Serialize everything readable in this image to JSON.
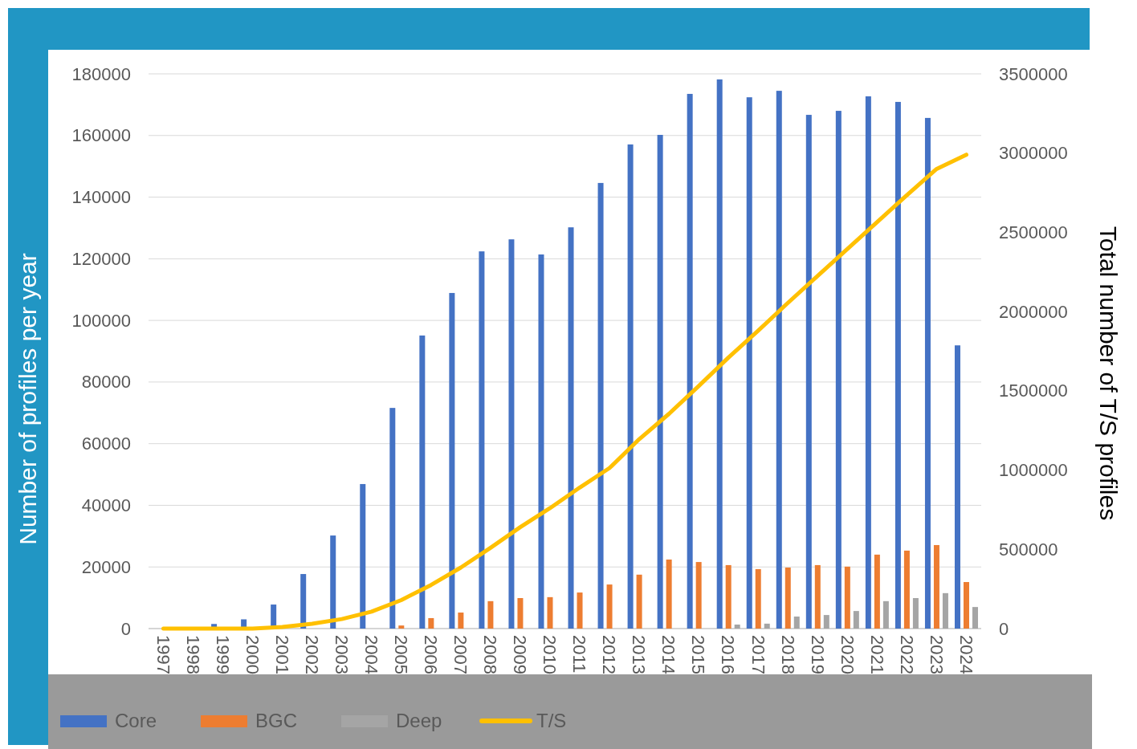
{
  "chart_data": {
    "type": "bar",
    "ylabel": "Number of profiles per year",
    "y2label": "Total number of T/S profiles",
    "categories": [
      "1997",
      "1998",
      "1999",
      "2000",
      "2001",
      "2002",
      "2003",
      "2004",
      "2005",
      "2006",
      "2007",
      "2008",
      "2009",
      "2010",
      "2011",
      "2012",
      "2013",
      "2014",
      "2015",
      "2016",
      "2017",
      "2018",
      "2019",
      "2020",
      "2021",
      "2022",
      "2023",
      "2024"
    ],
    "series": [
      {
        "name": "Core",
        "color": "#4472c4",
        "values": [
          0,
          0,
          1500,
          3000,
          7800,
          17700,
          30200,
          46900,
          71600,
          95100,
          108900,
          122400,
          126300,
          121400,
          130200,
          144600,
          157100,
          160200,
          173500,
          178200,
          172400,
          174500,
          166700,
          168000,
          172700,
          170900,
          165700,
          91900
        ]
      },
      {
        "name": "BGC",
        "color": "#ed7d31",
        "values": [
          0,
          0,
          0,
          0,
          0,
          0,
          0,
          0,
          1000,
          3400,
          5200,
          8900,
          9900,
          10200,
          11700,
          14300,
          17500,
          22400,
          21600,
          20600,
          19300,
          19800,
          20600,
          20100,
          24000,
          25300,
          27100,
          15100
        ]
      },
      {
        "name": "Deep",
        "color": "#a5a5a5",
        "values": [
          0,
          0,
          0,
          0,
          0,
          0,
          0,
          0,
          0,
          0,
          0,
          0,
          0,
          0,
          0,
          0,
          0,
          0,
          0,
          1300,
          1600,
          3900,
          4400,
          5700,
          8900,
          9900,
          11500,
          7000
        ]
      },
      {
        "name": "T/S",
        "type": "line",
        "axis": "y2",
        "color": "#ffc000",
        "values": [
          0,
          0,
          0,
          0,
          10000,
          30000,
          60000,
          107000,
          180000,
          275000,
          385000,
          510000,
          640000,
          760000,
          890000,
          1013000,
          1195000,
          1355000,
          1530000,
          1710000,
          1880000,
          2055000,
          2225000,
          2395000,
          2565000,
          2735000,
          2900000,
          2990000
        ]
      }
    ],
    "ylim": [
      0,
      180000
    ],
    "yticks": [
      0,
      20000,
      40000,
      60000,
      80000,
      100000,
      120000,
      140000,
      160000,
      180000
    ],
    "y2lim": [
      0,
      3500000
    ],
    "y2ticks": [
      0,
      500000,
      1000000,
      1500000,
      2000000,
      2500000,
      3000000,
      3500000
    ],
    "grid": "y",
    "legend": "bottom"
  }
}
